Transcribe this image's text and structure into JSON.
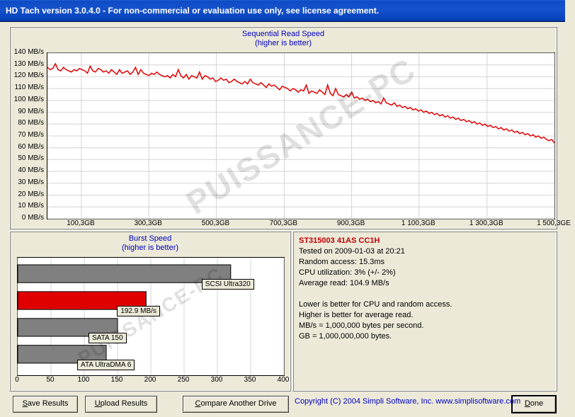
{
  "window": {
    "title": "HD Tach version 3.0.4.0  - For non-commercial or evaluation use only, see license agreement."
  },
  "watermark": "PUISSANCE-PC",
  "seq_chart": {
    "title_l1": "Sequential Read Speed",
    "title_l2": "(higher is better)",
    "ymin": 0,
    "ymax": 140,
    "ytick": 10,
    "y_suffix": " MB/s",
    "x_ticks": [
      "100,3GB",
      "300,3GB",
      "500,3GB",
      "700,3GB",
      "900,3GB",
      "1 100,3GB",
      "1 300,3GB",
      "1 500,3GE"
    ],
    "x_tick_pos": [
      0.067,
      0.2,
      0.333,
      0.467,
      0.6,
      0.733,
      0.867,
      1.0
    ],
    "line_color": "#e00000",
    "grid_color": "#d4d4d4",
    "bg": "#ffffff",
    "data": [
      128,
      126,
      127,
      131,
      126,
      125,
      128,
      126,
      125,
      124,
      126,
      125,
      127,
      126,
      125,
      123,
      129,
      125,
      124,
      127,
      126,
      124,
      125,
      123,
      126,
      124,
      122,
      126,
      123,
      124,
      125,
      122,
      124,
      128,
      122,
      126,
      123,
      122,
      121,
      123,
      122,
      124,
      122,
      121,
      120,
      121,
      119,
      122,
      120,
      126,
      121,
      119,
      122,
      118,
      121,
      120,
      119,
      124,
      118,
      121,
      120,
      118,
      119,
      116,
      117,
      119,
      117,
      118,
      115,
      116,
      118,
      116,
      115,
      114,
      116,
      114,
      118,
      115,
      114,
      113,
      115,
      113,
      111,
      114,
      112,
      113,
      111,
      109,
      112,
      111,
      110,
      108,
      110,
      109,
      107,
      109,
      108,
      113,
      106,
      108,
      107,
      106,
      109,
      107,
      105,
      113,
      106,
      104,
      110,
      105,
      104,
      103,
      105,
      103,
      107,
      102,
      103,
      101,
      102,
      100,
      101,
      99,
      100,
      98,
      99,
      97,
      102,
      98,
      97,
      96,
      98,
      95,
      96,
      94,
      95,
      93,
      94,
      92,
      93,
      91,
      92,
      90,
      91,
      89,
      90,
      88,
      89,
      87,
      88,
      86,
      87,
      85,
      86,
      84,
      85,
      83,
      84,
      82,
      83,
      81,
      82,
      80,
      81,
      79,
      80,
      78,
      79,
      77,
      78,
      76,
      77,
      75,
      76,
      74,
      75,
      73,
      74,
      72,
      73,
      71,
      72,
      70,
      71,
      69,
      70,
      68,
      69,
      67,
      66,
      67,
      64
    ]
  },
  "burst_chart": {
    "title_l1": "Burst Speed",
    "title_l2": "(higher is better)",
    "xmin": 0,
    "xmax": 400,
    "xtick": 50,
    "bg": "#ffffff",
    "grid_color": "#d4d4d4",
    "bars": [
      {
        "label": "SCSI Ultra320",
        "value": 320,
        "color": "#808080"
      },
      {
        "label": "192.9 MB/s",
        "value": 192.9,
        "color": "#e00000"
      },
      {
        "label": "SATA 150",
        "value": 150,
        "color": "#808080"
      },
      {
        "label": "ATA UltraDMA 6",
        "value": 133,
        "color": "#808080"
      }
    ]
  },
  "info": {
    "drive": "ST315003 41AS CC1H",
    "tested": "Tested on 2009-01-03 at 20:21",
    "random": "Random access: 15.3ms",
    "cpu": "CPU utilization: 3% (+/- 2%)",
    "avg": "Average read: 104.9 MB/s",
    "note1": "Lower is better for CPU and random access.",
    "note2": "Higher is better for average read.",
    "note3": "MB/s = 1,000,000 bytes per second.",
    "note4": "GB = 1,000,000,000 bytes."
  },
  "buttons": {
    "save": "Save Results",
    "upload": "Upload Results",
    "compare": "Compare Another Drive",
    "done": "Done"
  },
  "copyright": "Copyright (C) 2004 Simpli Software, Inc. www.simplisoftware.com"
}
